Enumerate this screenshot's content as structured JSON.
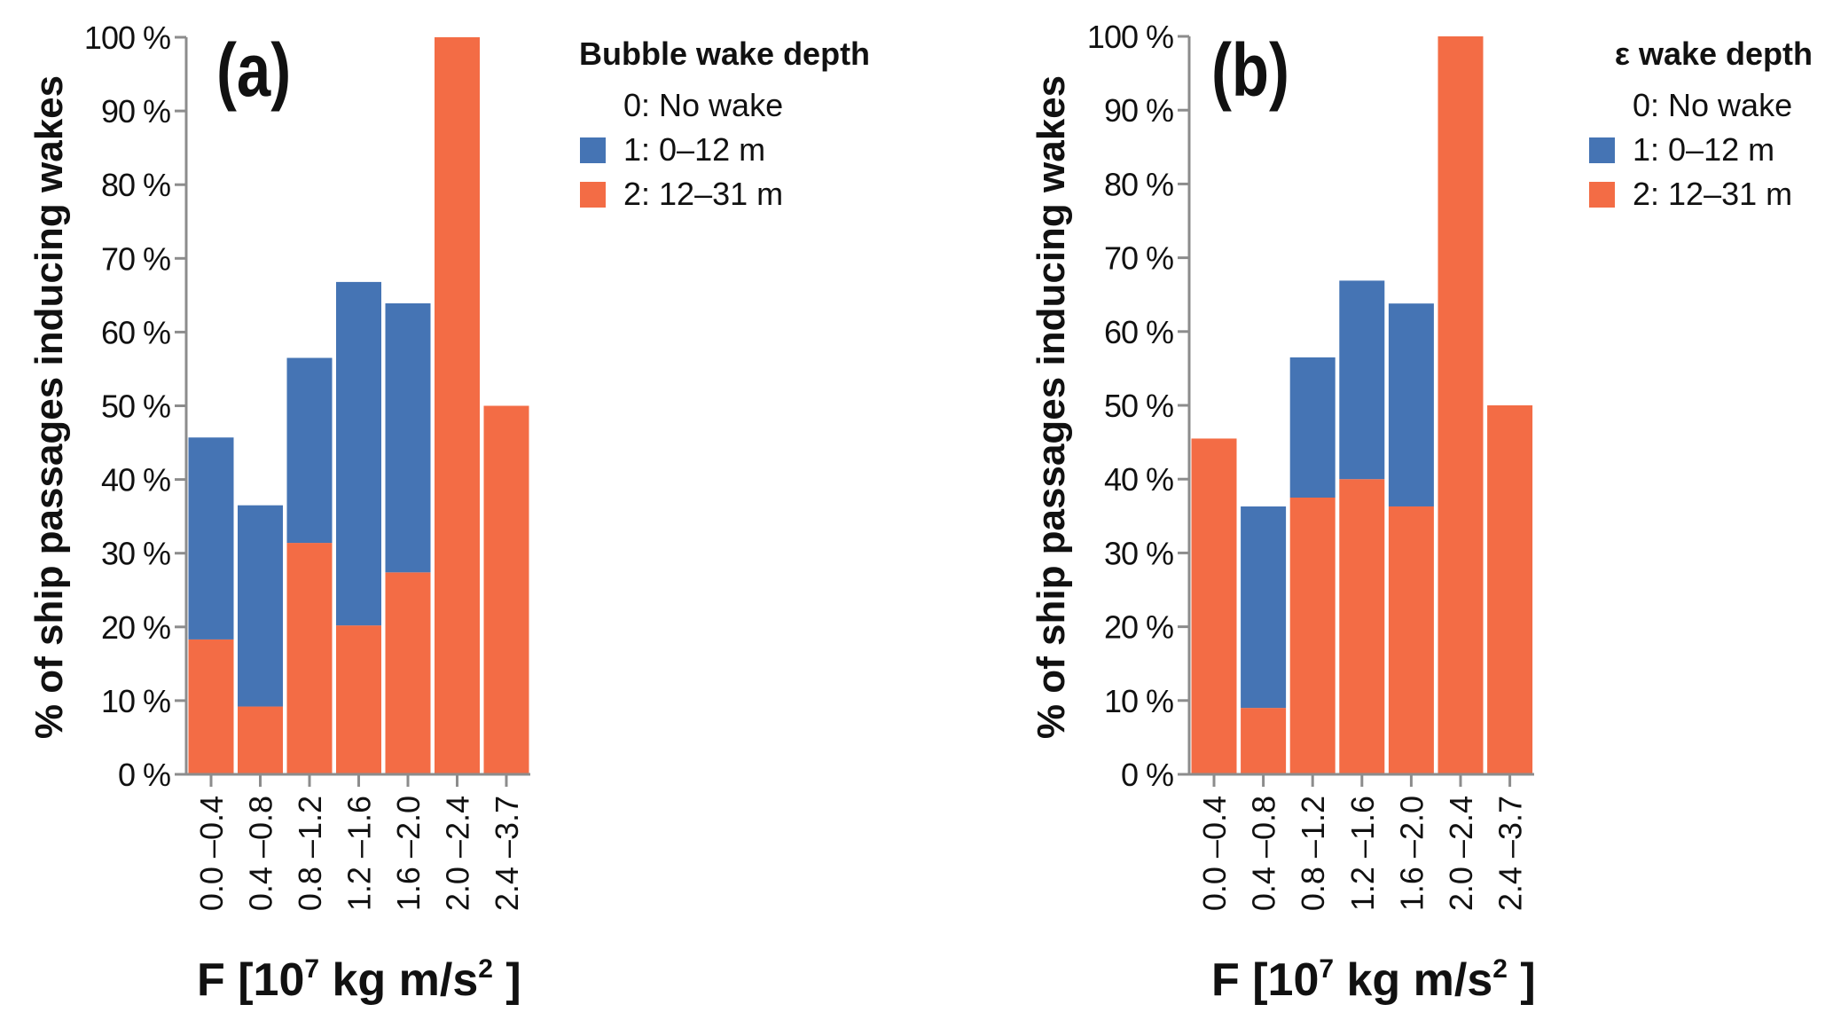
{
  "chart_data": [
    {
      "type": "bar",
      "stacked": true,
      "panel_label": "(a)",
      "title": "",
      "xlabel": "F [10⁷ kg m/s² ]",
      "xlabel_parts": {
        "prefix": "F [10",
        "exp": "7",
        "mid": " kg m/s",
        "exp2": "2",
        "suffix": " ]"
      },
      "ylabel": "% of ship passages inducing wakes",
      "ylim": [
        0,
        100
      ],
      "yticks": [
        0,
        10,
        20,
        30,
        40,
        50,
        60,
        70,
        80,
        90,
        100
      ],
      "ytick_labels": [
        "0 %",
        "10 %",
        "20 %",
        "30 %",
        "40 %",
        "50 %",
        "60 %",
        "70 %",
        "80 %",
        "90 %",
        "100 %"
      ],
      "categories": [
        "0.0 –0.4",
        "0.4 –0.8",
        "0.8 –1.2",
        "1.2 –1.6",
        "1.6 –2.0",
        "2.0 –2.4",
        "2.4 –3.7"
      ],
      "grid": false,
      "legend": {
        "title": "Bubble wake depth",
        "placement": "right",
        "entries": [
          {
            "label": "0: No wake",
            "color": null
          },
          {
            "label": "1: 0–12 m",
            "color": "#4574B4"
          },
          {
            "label": "2: 12–31 m",
            "color": "#F36C45"
          }
        ]
      },
      "series": [
        {
          "name": "2: 12–31 m",
          "color": "#F36C45",
          "values": [
            18.3,
            9.2,
            31.4,
            20.2,
            27.4,
            100.0,
            50.0
          ]
        },
        {
          "name": "1: 0–12 m",
          "color": "#4574B4",
          "values": [
            27.4,
            27.3,
            25.1,
            46.6,
            36.5,
            0.0,
            0.0
          ]
        }
      ],
      "totals": [
        45.7,
        36.5,
        56.5,
        66.8,
        63.9,
        100.0,
        50.0
      ]
    },
    {
      "type": "bar",
      "stacked": true,
      "panel_label": "(b)",
      "title": "",
      "xlabel": "F [10⁷ kg m/s² ]",
      "xlabel_parts": {
        "prefix": "F [10",
        "exp": "7",
        "mid": " kg m/s",
        "exp2": "2",
        "suffix": " ]"
      },
      "ylabel": "% of ship passages inducing wakes",
      "ylim": [
        0,
        100
      ],
      "yticks": [
        0,
        10,
        20,
        30,
        40,
        50,
        60,
        70,
        80,
        90,
        100
      ],
      "ytick_labels": [
        "0 %",
        "10 %",
        "20 %",
        "30 %",
        "40 %",
        "50 %",
        "60 %",
        "70 %",
        "80 %",
        "90 %",
        "100 %"
      ],
      "categories": [
        "0.0 –0.4",
        "0.4 –0.8",
        "0.8 –1.2",
        "1.2 –1.6",
        "1.6 –2.0",
        "2.0 –2.4",
        "2.4 –3.7"
      ],
      "grid": false,
      "legend": {
        "title": "ε wake depth",
        "placement": "right",
        "entries": [
          {
            "label": "0: No wake",
            "color": null
          },
          {
            "label": "1: 0–12 m",
            "color": "#4574B4"
          },
          {
            "label": "2: 12–31 m",
            "color": "#F36C45"
          }
        ]
      },
      "series": [
        {
          "name": "2: 12–31 m",
          "color": "#F36C45",
          "values": [
            45.5,
            9.0,
            37.5,
            40.0,
            36.3,
            100.0,
            50.0
          ]
        },
        {
          "name": "1: 0–12 m",
          "color": "#4574B4",
          "values": [
            0.0,
            27.3,
            19.0,
            26.9,
            27.5,
            0.0,
            0.0
          ]
        }
      ],
      "totals": [
        45.5,
        36.3,
        56.5,
        66.9,
        63.8,
        100.0,
        50.0
      ]
    }
  ]
}
